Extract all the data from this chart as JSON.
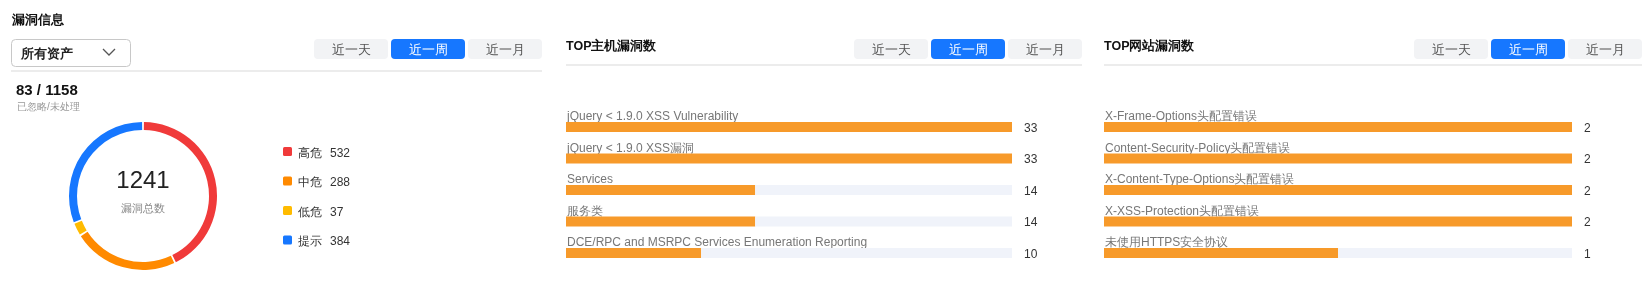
{
  "chart_data": [
    {
      "type": "donut",
      "title": "漏洞信息",
      "categories": [
        "高危",
        "中危",
        "低危",
        "提示"
      ],
      "values": [
        532,
        288,
        37,
        384
      ],
      "colors": [
        "#f03a3a",
        "#ff8a00",
        "#ffbb00",
        "#1677ff"
      ],
      "data_labels": true,
      "legend": "right",
      "annotations": [
        "所有资产",
        "近一天",
        "近一周",
        "近一月",
        "83 / 1158",
        "已忽略/未处理",
        "1241",
        "漏洞总数"
      ]
    },
    {
      "type": "bar",
      "orientation": "horizontal",
      "stacked": true,
      "title": "TOP主机漏洞数",
      "categories": [
        "jQuery < 1.9.0 XSS Vulnerability",
        "jQuery < 1.9.0 XSS漏洞",
        "Services",
        "服务类",
        "DCE/RPC and MSRPC Services Enumeration Reporting"
      ],
      "series": [
        {
          "color": "#f79a2a",
          "values": [
            33,
            33,
            14,
            14,
            10
          ],
          "value_labels": [
            "33",
            "33",
            "14",
            "14",
            "10"
          ]
        },
        {
          "color": "#f0f3fa",
          "values": [
            0,
            0,
            19,
            19,
            23
          ]
        }
      ],
      "annotations": [
        "近一天",
        "近一周",
        "近一月"
      ]
    },
    {
      "type": "bar",
      "orientation": "horizontal",
      "stacked": true,
      "title": "TOP网站漏洞数",
      "categories": [
        "X-Frame-Options头配置错误",
        "Content-Security-Policy头配置错误",
        "X-Content-Type-Options头配置错误",
        "X-XSS-Protection头配置错误",
        "未使用HTTPS安全协议"
      ],
      "series": [
        {
          "color": "#f79a2a",
          "values": [
            2,
            2,
            2,
            2,
            1
          ],
          "value_labels": [
            "2",
            "2",
            "2",
            "2",
            "1"
          ]
        },
        {
          "color": "#f0f3fa",
          "values": [
            0,
            0,
            0,
            0,
            1
          ]
        }
      ],
      "annotations": [
        "近一天",
        "近一周",
        "近一月"
      ]
    }
  ]
}
